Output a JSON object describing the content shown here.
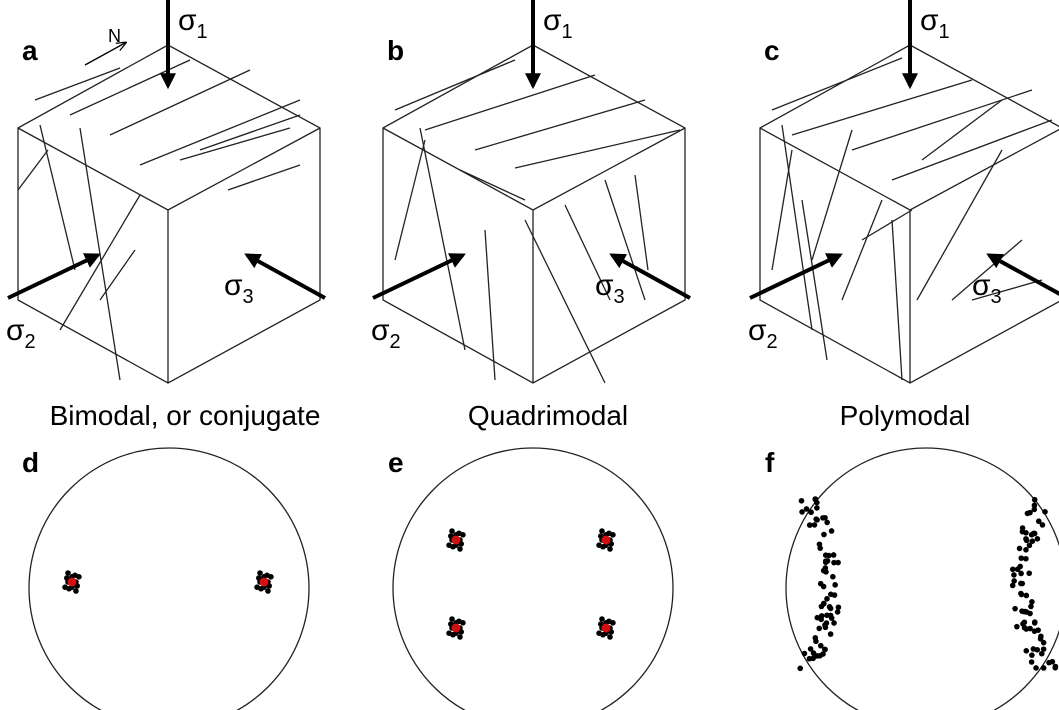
{
  "blocks": [
    {
      "letter": "a",
      "north": "N",
      "sigma1": "σ",
      "sub1": "1",
      "sigma2": "σ",
      "sub2": "2",
      "sigma3": "σ",
      "sub3": "3",
      "caption": "Bimodal, or conjugate"
    },
    {
      "letter": "b",
      "sigma1": "σ",
      "sub1": "1",
      "sigma2": "σ",
      "sub2": "2",
      "sigma3": "σ",
      "sub3": "3",
      "caption": "Quadrimodal"
    },
    {
      "letter": "c",
      "sigma1": "σ",
      "sub1": "1",
      "sigma2": "σ",
      "sub2": "2",
      "sigma3": "σ",
      "sub3": "3",
      "caption": "Polymodal"
    }
  ],
  "stereonets": [
    {
      "letter": "d"
    },
    {
      "letter": "e"
    },
    {
      "letter": "f"
    }
  ]
}
